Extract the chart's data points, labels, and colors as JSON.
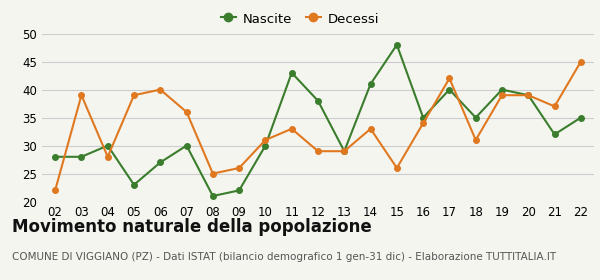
{
  "years": [
    "02",
    "03",
    "04",
    "05",
    "06",
    "07",
    "08",
    "09",
    "10",
    "11",
    "12",
    "13",
    "14",
    "15",
    "16",
    "17",
    "18",
    "19",
    "20",
    "21",
    "22"
  ],
  "nascite": [
    28,
    28,
    30,
    23,
    27,
    30,
    21,
    22,
    30,
    43,
    38,
    29,
    41,
    48,
    35,
    40,
    35,
    40,
    39,
    32,
    35
  ],
  "decessi": [
    22,
    39,
    28,
    39,
    40,
    36,
    25,
    26,
    31,
    33,
    29,
    29,
    33,
    26,
    34,
    42,
    31,
    39,
    39,
    37,
    45
  ],
  "nascite_color": "#3a7d2c",
  "decessi_color": "#e07820",
  "background_color": "#f5f5f0",
  "grid_color": "#cccccc",
  "ylim": [
    20,
    50
  ],
  "yticks": [
    20,
    25,
    30,
    35,
    40,
    45,
    50
  ],
  "title": "Movimento naturale della popolazione",
  "subtitle": "COMUNE DI VIGGIANO (PZ) - Dati ISTAT (bilancio demografico 1 gen-31 dic) - Elaborazione TUTTITALIA.IT",
  "legend_nascite": "Nascite",
  "legend_decessi": "Decessi",
  "title_fontsize": 12,
  "subtitle_fontsize": 7.5,
  "legend_fontsize": 9.5,
  "tick_fontsize": 8.5
}
